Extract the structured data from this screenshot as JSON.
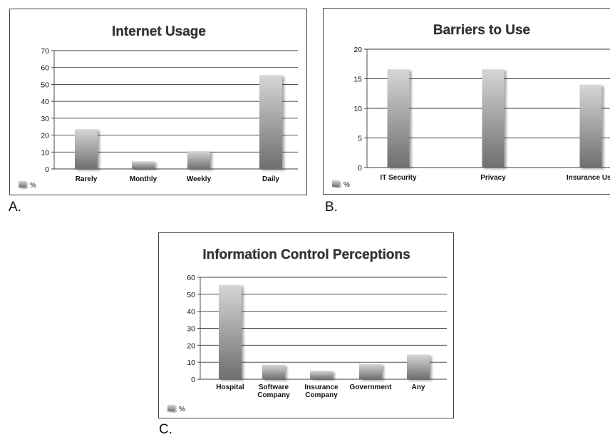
{
  "panel_labels": [
    "A.",
    "B.",
    "C."
  ],
  "colors": {
    "bar_light": "#d6d6d6",
    "bar_dark": "#6f6f6f",
    "grid": "#3c3c3c",
    "text": "#111111"
  },
  "chart_data": [
    {
      "type": "bar",
      "title": "Internet Usage",
      "categories": [
        "Rarely",
        "Monthly",
        "Weekly",
        "Daily"
      ],
      "series": [
        {
          "name": "%",
          "values": [
            23.5,
            4.5,
            10.5,
            55.5
          ]
        }
      ],
      "yticks": [
        0,
        10,
        20,
        30,
        40,
        50,
        60,
        70
      ],
      "ylim": [
        0,
        70
      ],
      "grid": true,
      "legend": "bottom-left"
    },
    {
      "type": "bar",
      "title": "Barriers to Use",
      "categories": [
        "IT Security",
        "Privacy",
        "Insurance Use"
      ],
      "series": [
        {
          "name": "%",
          "values": [
            16.6,
            16.6,
            14
          ]
        }
      ],
      "yticks": [
        0,
        5,
        10,
        15,
        20
      ],
      "ylim": [
        0,
        20
      ],
      "grid": true,
      "legend": "bottom-left"
    },
    {
      "type": "bar",
      "title": "Information Control Perceptions",
      "categories": [
        "Hospital",
        "Software\nCompany",
        "Insurance\nCompany",
        "Government",
        "Any"
      ],
      "series": [
        {
          "name": "%",
          "values": [
            55.5,
            8.5,
            5,
            9,
            14.5
          ]
        }
      ],
      "yticks": [
        0,
        10,
        20,
        30,
        40,
        50,
        60
      ],
      "ylim": [
        0,
        60
      ],
      "grid": true,
      "legend": "bottom-left"
    }
  ]
}
